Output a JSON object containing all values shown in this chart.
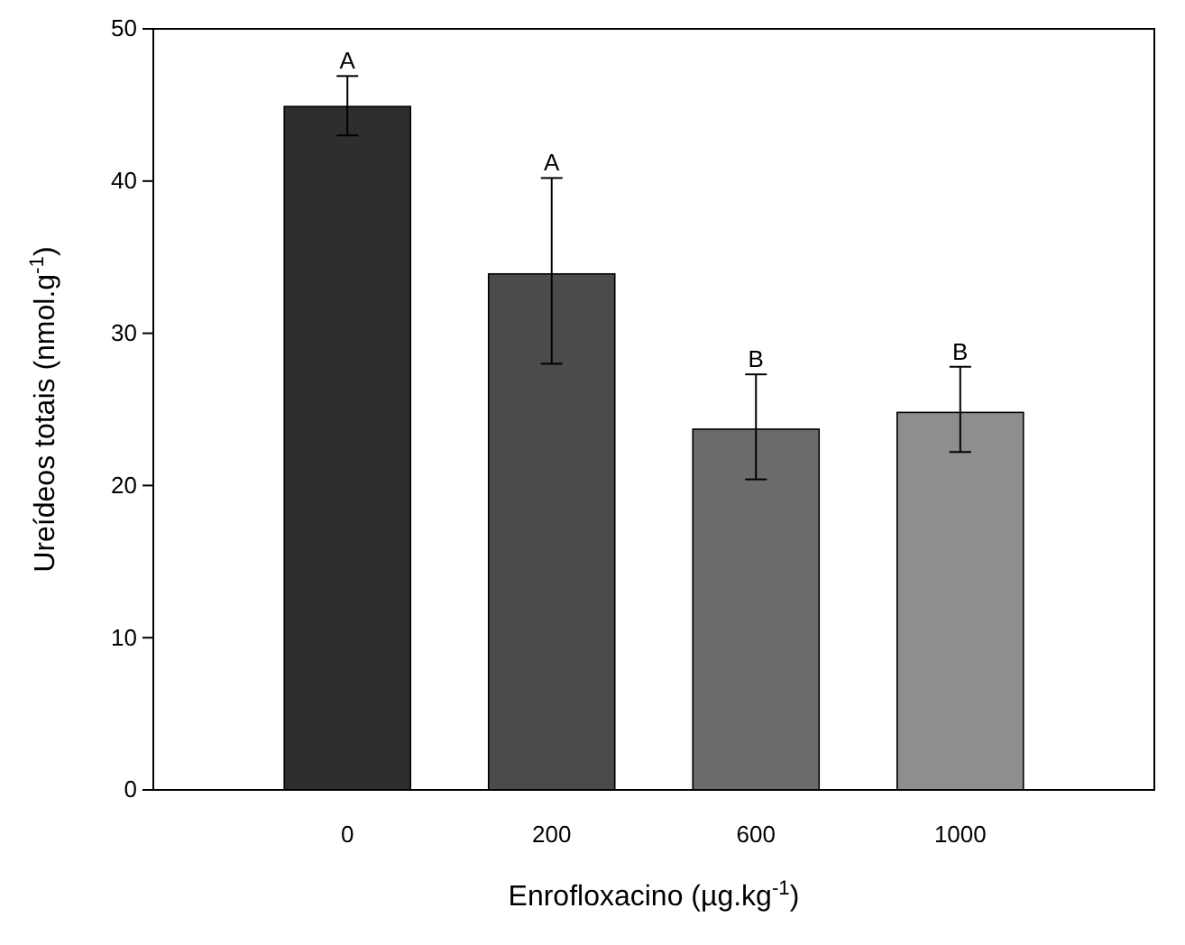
{
  "chart_data": {
    "type": "bar",
    "xlabel": "Enrofloxacino (µg.kg$^{-1}$)",
    "ylabel": "Ureídeos totais (nmol.g$^{-1}$)",
    "categories": [
      "0",
      "200",
      "600",
      "1000"
    ],
    "values": [
      44.9,
      33.9,
      23.7,
      24.8
    ],
    "colors": [
      "#2e2e2e",
      "#4b4b4b",
      "#6b6b6b",
      "#8e8e8e"
    ],
    "errors": [
      [
        43.0,
        46.9
      ],
      [
        28.0,
        40.2
      ],
      [
        20.4,
        27.3
      ],
      [
        22.2,
        27.8
      ]
    ],
    "ylim": [
      0,
      50
    ],
    "yticks": [
      0,
      10,
      20,
      30,
      40,
      50
    ],
    "annotations": [
      {
        "text": "A",
        "x": "0",
        "y": 46.9
      },
      {
        "text": "A",
        "x": "200",
        "y": 40.2
      },
      {
        "text": "B",
        "x": "600",
        "y": 27.3
      },
      {
        "text": "B",
        "x": "1000",
        "y": 27.8
      }
    ]
  }
}
